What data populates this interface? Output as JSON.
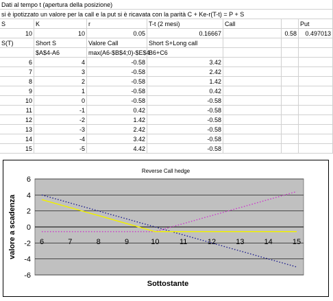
{
  "sheet": {
    "row1": "Dati al tempo t (apertura della posizione)",
    "row2": "si è ipotizzato un valore per la call e la put si è ricavata con la parità C + Ke-r(T-t) = P + S",
    "params_header": [
      "S",
      "K",
      "r",
      "T-t (2 mesi)",
      "Call",
      "",
      "Put"
    ],
    "params_values": [
      "10",
      "10",
      "0.05",
      "0.16667",
      "",
      "0.58",
      "0.497013"
    ],
    "table_header": [
      "S(T)",
      "Short S",
      "Valore Call",
      "Short S+Long call"
    ],
    "formula_row": [
      "",
      "$A$4-A6",
      "max(A6-$B$4;0)-$E$4",
      "B6+C6"
    ],
    "rows": [
      [
        "6",
        "4",
        "-0.58",
        "3.42"
      ],
      [
        "7",
        "3",
        "-0.58",
        "2.42"
      ],
      [
        "8",
        "2",
        "-0.58",
        "1.42"
      ],
      [
        "9",
        "1",
        "-0.58",
        "0.42"
      ],
      [
        "10",
        "0",
        "-0.58",
        "-0.58"
      ],
      [
        "11",
        "-1",
        "0.42",
        "-0.58"
      ],
      [
        "12",
        "-2",
        "1.42",
        "-0.58"
      ],
      [
        "13",
        "-3",
        "2.42",
        "-0.58"
      ],
      [
        "14",
        "-4",
        "3.42",
        "-0.58"
      ],
      [
        "15",
        "-5",
        "4.42",
        "-0.58"
      ]
    ]
  },
  "chart_data": {
    "type": "line",
    "title": "Reverse Call hedge",
    "xlabel": "Sottostante",
    "ylabel": "valore a scadenza",
    "x": [
      6,
      7,
      8,
      9,
      10,
      11,
      12,
      13,
      14,
      15
    ],
    "ylim": [
      -6,
      6
    ],
    "yticks": [
      -6,
      -4,
      -2,
      0,
      2,
      4,
      6
    ],
    "grid": true,
    "series": [
      {
        "values": [
          4,
          3,
          2,
          1,
          0,
          -1,
          -2,
          -3,
          -4,
          -5
        ],
        "color": "#1a1a8c",
        "style": "dotted"
      },
      {
        "values": [
          -0.58,
          -0.58,
          -0.58,
          -0.58,
          -0.58,
          0.42,
          1.42,
          2.42,
          3.42,
          4.42
        ],
        "color": "#cc33cc",
        "style": "dotted"
      },
      {
        "values": [
          3.42,
          2.42,
          1.42,
          0.42,
          -0.58,
          -0.58,
          -0.58,
          -0.58,
          -0.58,
          -0.58
        ],
        "color": "#f0f000",
        "style": "solid"
      }
    ],
    "plot_background": "#c0c0c0"
  }
}
